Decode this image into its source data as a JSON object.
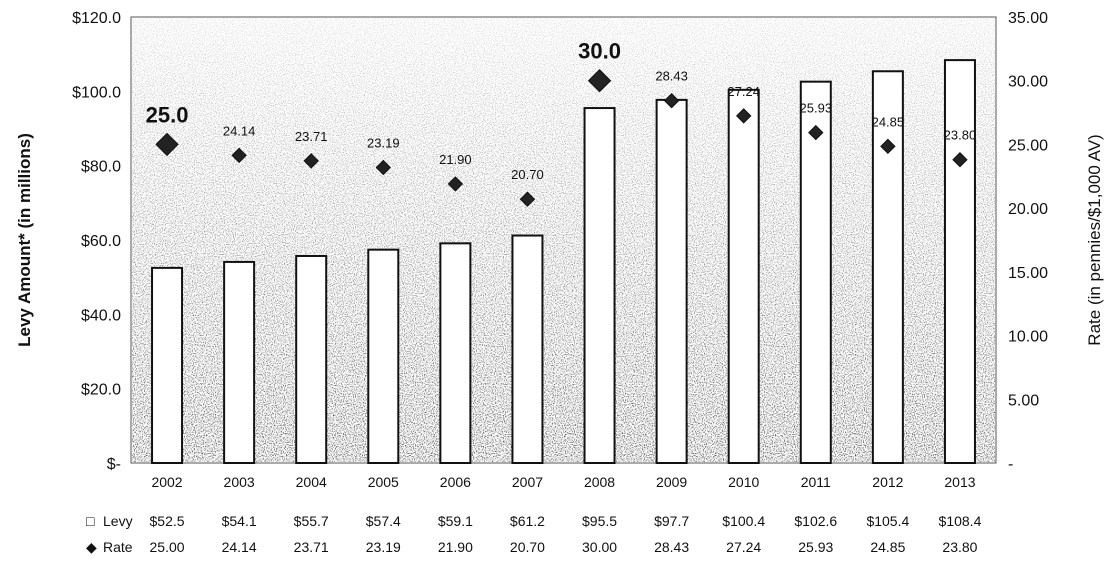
{
  "chart_data": {
    "type": "bar",
    "categories": [
      "2002",
      "2003",
      "2004",
      "2005",
      "2006",
      "2007",
      "2008",
      "2009",
      "2010",
      "2011",
      "2012",
      "2013"
    ],
    "series": [
      {
        "name": "Levy",
        "axis": "left",
        "type": "bar",
        "values": [
          52.5,
          54.1,
          55.7,
          57.4,
          59.1,
          61.2,
          95.5,
          97.7,
          100.4,
          102.6,
          105.4,
          108.4
        ],
        "table_labels": [
          "$52.5",
          "$54.1",
          "$55.7",
          "$57.4",
          "$59.1",
          "$61.2",
          "$95.5",
          "$97.7",
          "$100.4",
          "$102.6",
          "$105.4",
          "$108.4"
        ]
      },
      {
        "name": "Rate",
        "axis": "right",
        "type": "scatter",
        "values": [
          25.0,
          24.14,
          23.71,
          23.19,
          21.9,
          20.7,
          30.0,
          28.43,
          27.24,
          25.93,
          24.85,
          23.8
        ],
        "point_labels": [
          "25.0",
          "24.14",
          "23.71",
          "23.19",
          "21.90",
          "20.70",
          "30.0",
          "28.43",
          "27.24",
          "25.93",
          "24.85",
          "23.80"
        ],
        "table_labels": [
          "25.00",
          "24.14",
          "23.71",
          "23.19",
          "21.90",
          "20.70",
          "30.00",
          "28.43",
          "27.24",
          "25.93",
          "24.85",
          "23.80"
        ]
      }
    ],
    "ylabel": "Levy Amount* (in millions)",
    "ylabel_right": "Rate (in pennies/$1,000 AV)",
    "ylim": [
      0,
      120
    ],
    "ylim_right": [
      0,
      35
    ],
    "left_ticks": [
      "$-",
      "$20.0",
      "$40.0",
      "$60.0",
      "$80.0",
      "$100.0",
      "$120.0"
    ],
    "right_ticks": [
      "-",
      "5.00",
      "10.00",
      "15.00",
      "20.00",
      "25.00",
      "30.00",
      "35.00"
    ],
    "highlighted_rate_labels": [
      "25.0",
      "30.0"
    ],
    "table_rows": [
      {
        "legend": "Levy",
        "symbol": "□"
      },
      {
        "legend": "Rate",
        "symbol": "◆"
      }
    ],
    "grid": false,
    "legend_position": "bottom-table"
  }
}
